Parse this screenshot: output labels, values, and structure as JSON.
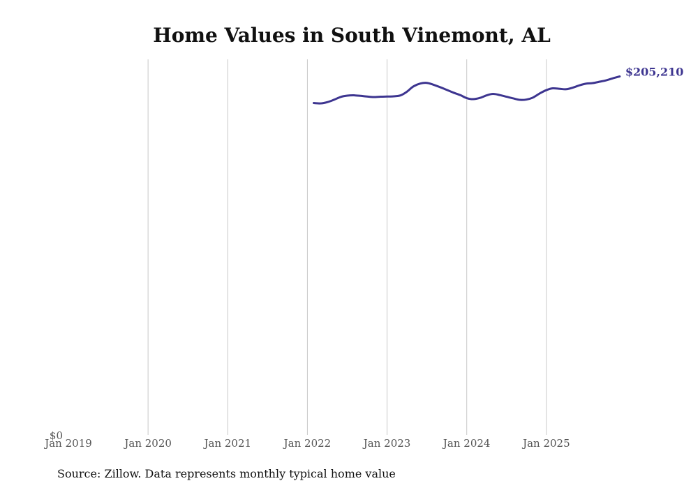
{
  "chart_data": {
    "type": "line",
    "title": "Home Values in South Vinemont, AL",
    "xlabel": "",
    "ylabel": "",
    "x_ticks": [
      "Jan 2019",
      "Jan 2020",
      "Jan 2021",
      "Jan 2022",
      "Jan 2023",
      "Jan 2024",
      "Jan 2025"
    ],
    "x_range": [
      2019.0,
      2026.0
    ],
    "y_tick_label": "$0",
    "ylim": [
      0,
      215000
    ],
    "grid": "vertical",
    "legend": "none",
    "series": [
      {
        "name": "Typical home value",
        "color": "#3d3590",
        "end_label": "$205,210",
        "x": [
          2022.08,
          2022.17,
          2022.25,
          2022.33,
          2022.42,
          2022.5,
          2022.58,
          2022.67,
          2022.75,
          2022.83,
          2022.92,
          2023.0,
          2023.08,
          2023.17,
          2023.25,
          2023.33,
          2023.42,
          2023.5,
          2023.58,
          2023.67,
          2023.75,
          2023.83,
          2023.92,
          2024.0,
          2024.08,
          2024.17,
          2024.25,
          2024.33,
          2024.42,
          2024.5,
          2024.58,
          2024.67,
          2024.75,
          2024.83,
          2024.92,
          2025.0,
          2025.08,
          2025.17,
          2025.25,
          2025.33,
          2025.42,
          2025.5,
          2025.58,
          2025.67,
          2025.75,
          2025.83,
          2025.92
        ],
        "values": [
          190000,
          189800,
          190500,
          191800,
          193500,
          194200,
          194400,
          194100,
          193700,
          193400,
          193600,
          193700,
          193800,
          194400,
          196500,
          199500,
          201200,
          201500,
          200500,
          199000,
          197500,
          196000,
          194500,
          192800,
          192200,
          193000,
          194400,
          195200,
          194500,
          193600,
          192700,
          191800,
          192000,
          193100,
          195600,
          197400,
          198400,
          198100,
          197900,
          198800,
          200200,
          201100,
          201400,
          202200,
          203000,
          204100,
          205210
        ]
      }
    ]
  },
  "footer": {
    "source": "Source: Zillow. Data represents monthly typical home value"
  }
}
